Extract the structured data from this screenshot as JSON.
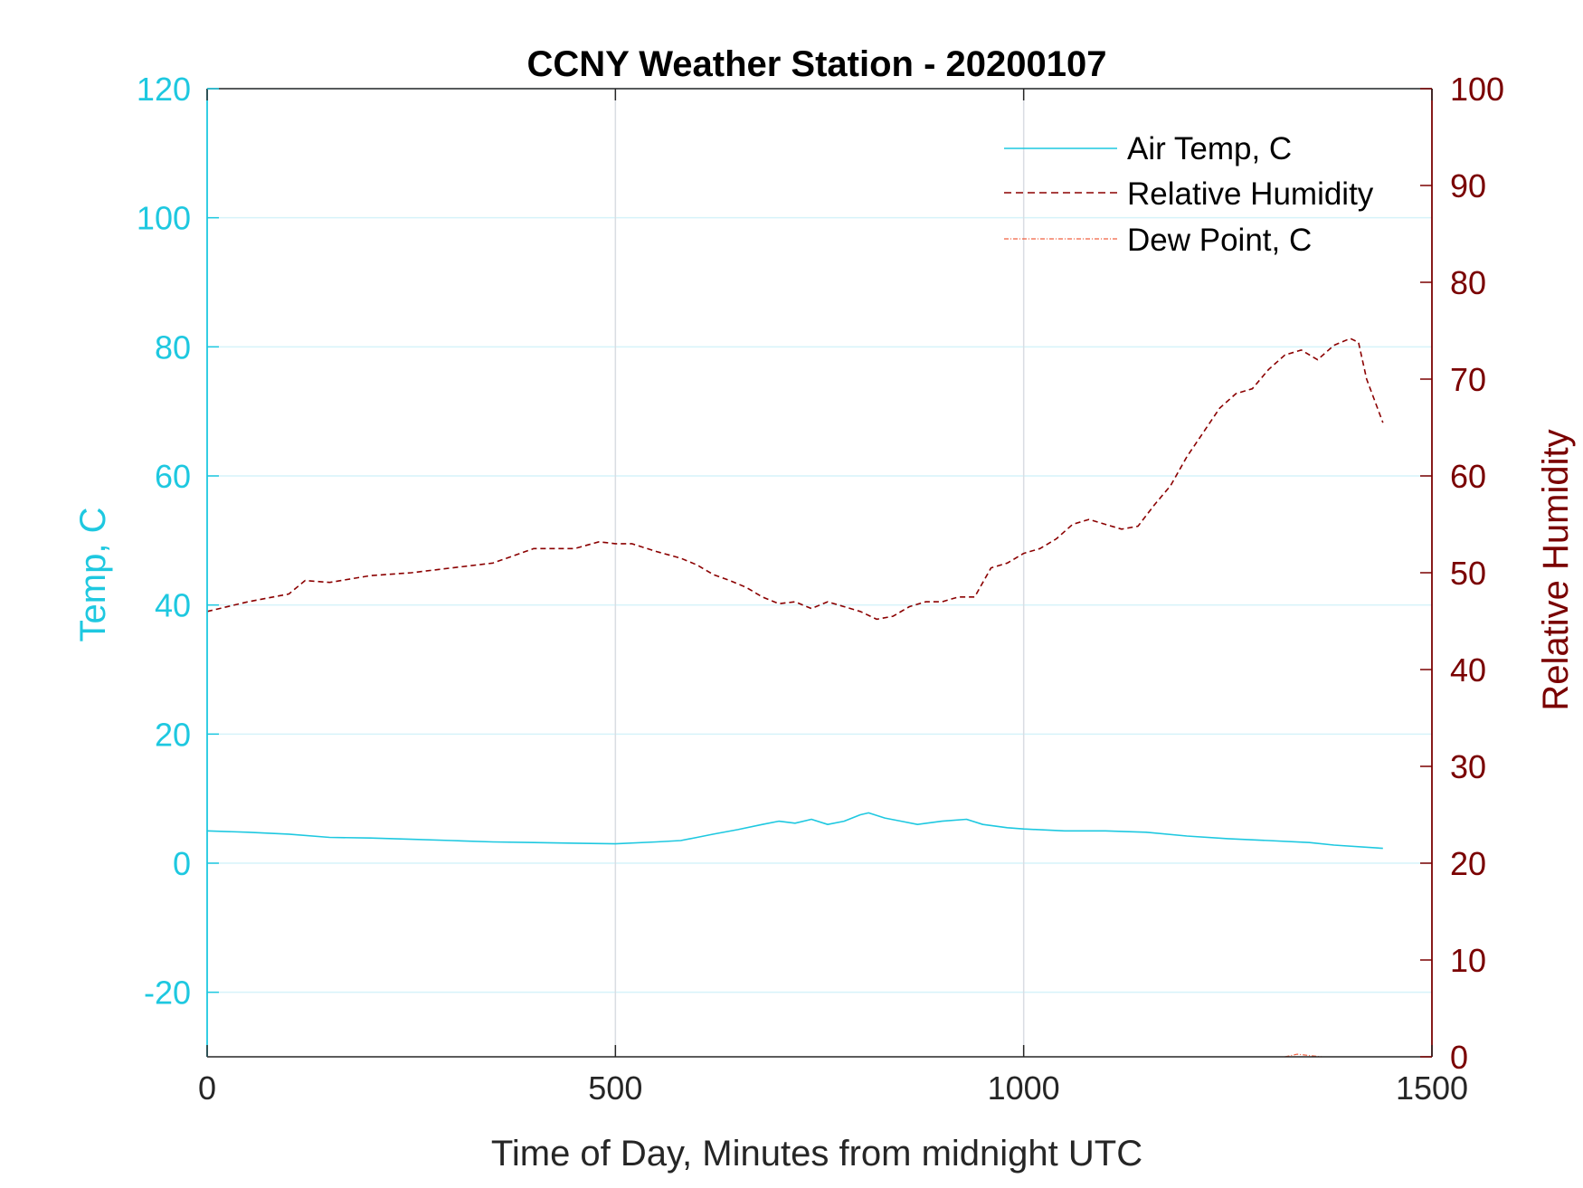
{
  "chart_data": {
    "type": "line",
    "title": "CCNY Weather Station - 20200107",
    "xlabel": "Time of Day, Minutes from midnight UTC",
    "ylabel_left": "Temp, C",
    "ylabel_right": "Relative Humidity",
    "xlim": [
      0,
      1500
    ],
    "ylim_left": [
      -30,
      120
    ],
    "ylim_right": [
      0,
      100
    ],
    "x_ticks": [
      0,
      500,
      1000,
      1500
    ],
    "y_left_ticks": [
      -20,
      0,
      20,
      40,
      60,
      80,
      100,
      120
    ],
    "y_right_ticks": [
      0,
      10,
      20,
      30,
      40,
      50,
      60,
      70,
      80,
      90,
      100
    ],
    "grid": true,
    "legend_position": "top-right",
    "colors": {
      "left_axis": "#1ec8e0",
      "right_axis": "#7a0000",
      "temp": "#1ec8e0",
      "humidity": "#8b0000",
      "dew": "#f06040",
      "grid_h": "#d6f3fa",
      "grid_v": "#d9dde3"
    },
    "series": [
      {
        "name": "Air Temp, C",
        "axis": "left",
        "style": "solid",
        "color": "#1ec8e0",
        "x": [
          0,
          50,
          100,
          150,
          200,
          250,
          300,
          350,
          400,
          450,
          500,
          550,
          580,
          600,
          620,
          650,
          680,
          700,
          720,
          740,
          760,
          780,
          800,
          810,
          830,
          850,
          870,
          900,
          930,
          950,
          980,
          1000,
          1050,
          1100,
          1150,
          1200,
          1250,
          1300,
          1350,
          1380,
          1440
        ],
        "values": [
          5.0,
          4.8,
          4.5,
          4.0,
          3.9,
          3.7,
          3.5,
          3.3,
          3.2,
          3.1,
          3.0,
          3.3,
          3.5,
          4.0,
          4.5,
          5.2,
          6.0,
          6.5,
          6.2,
          6.8,
          6.0,
          6.5,
          7.5,
          7.8,
          7.0,
          6.5,
          6.0,
          6.5,
          6.8,
          6.0,
          5.5,
          5.3,
          5.0,
          5.0,
          4.8,
          4.2,
          3.8,
          3.5,
          3.2,
          2.8,
          2.3
        ]
      },
      {
        "name": "Relative Humidity",
        "axis": "right",
        "style": "dashed",
        "color": "#8b0000",
        "x": [
          0,
          50,
          100,
          120,
          150,
          200,
          250,
          300,
          350,
          400,
          450,
          480,
          500,
          520,
          550,
          580,
          600,
          620,
          640,
          660,
          680,
          700,
          720,
          740,
          760,
          780,
          800,
          820,
          840,
          860,
          880,
          900,
          920,
          940,
          960,
          980,
          1000,
          1020,
          1040,
          1060,
          1080,
          1100,
          1120,
          1140,
          1160,
          1180,
          1200,
          1220,
          1240,
          1260,
          1280,
          1300,
          1320,
          1340,
          1360,
          1380,
          1400,
          1410,
          1420,
          1440
        ],
        "values": [
          46.0,
          47.0,
          47.8,
          49.2,
          49.0,
          49.7,
          50.0,
          50.5,
          51.0,
          52.5,
          52.5,
          53.2,
          53.0,
          53.0,
          52.2,
          51.5,
          50.8,
          49.8,
          49.2,
          48.5,
          47.5,
          46.8,
          47.0,
          46.3,
          47.0,
          46.5,
          46.0,
          45.2,
          45.5,
          46.5,
          47.0,
          47.0,
          47.5,
          47.5,
          50.5,
          51.0,
          52.0,
          52.5,
          53.5,
          55.0,
          55.5,
          55.0,
          54.5,
          54.8,
          57.0,
          59.0,
          62.0,
          64.5,
          67.0,
          68.5,
          69.0,
          71.0,
          72.5,
          73.0,
          72.0,
          73.5,
          74.2,
          73.8,
          70.0,
          65.5
        ]
      },
      {
        "name": "Dew Point, C",
        "axis": "left",
        "style": "dash-dot",
        "color": "#f06040",
        "x": [
          1320,
          1335,
          1350,
          1365
        ],
        "values": [
          -30,
          -29.6,
          -29.8,
          -30
        ]
      }
    ]
  }
}
